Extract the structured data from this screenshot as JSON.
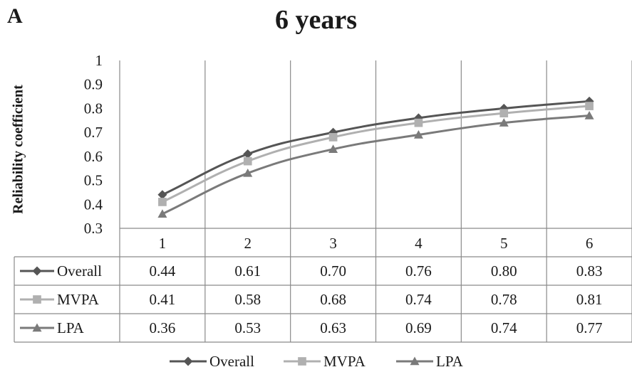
{
  "panel_label": "A",
  "chart_data": {
    "type": "line",
    "title": "6 years",
    "xlabel": "",
    "ylabel": "Reliability coefficient",
    "categories": [
      "1",
      "2",
      "3",
      "4",
      "5",
      "6"
    ],
    "ylim": [
      0.3,
      1
    ],
    "yticks": [
      "0.3",
      "0.4",
      "0.5",
      "0.6",
      "0.7",
      "0.8",
      "0.9",
      "1"
    ],
    "grid": "vertical",
    "legend_position": "bottom",
    "data_table": true,
    "series": [
      {
        "name": "Overall",
        "marker": "diamond",
        "color": "#555555",
        "values": [
          0.44,
          0.61,
          0.7,
          0.76,
          0.8,
          0.83
        ],
        "labels": [
          "0.44",
          "0.61",
          "0.70",
          "0.76",
          "0.80",
          "0.83"
        ]
      },
      {
        "name": "MVPA",
        "marker": "square",
        "color": "#b0b0b0",
        "values": [
          0.41,
          0.58,
          0.68,
          0.74,
          0.78,
          0.81
        ],
        "labels": [
          "0.41",
          "0.58",
          "0.68",
          "0.74",
          "0.78",
          "0.81"
        ]
      },
      {
        "name": "LPA",
        "marker": "triangle",
        "color": "#7a7a7a",
        "values": [
          0.36,
          0.53,
          0.63,
          0.69,
          0.74,
          0.77
        ],
        "labels": [
          "0.36",
          "0.53",
          "0.63",
          "0.69",
          "0.74",
          "0.77"
        ]
      }
    ]
  }
}
